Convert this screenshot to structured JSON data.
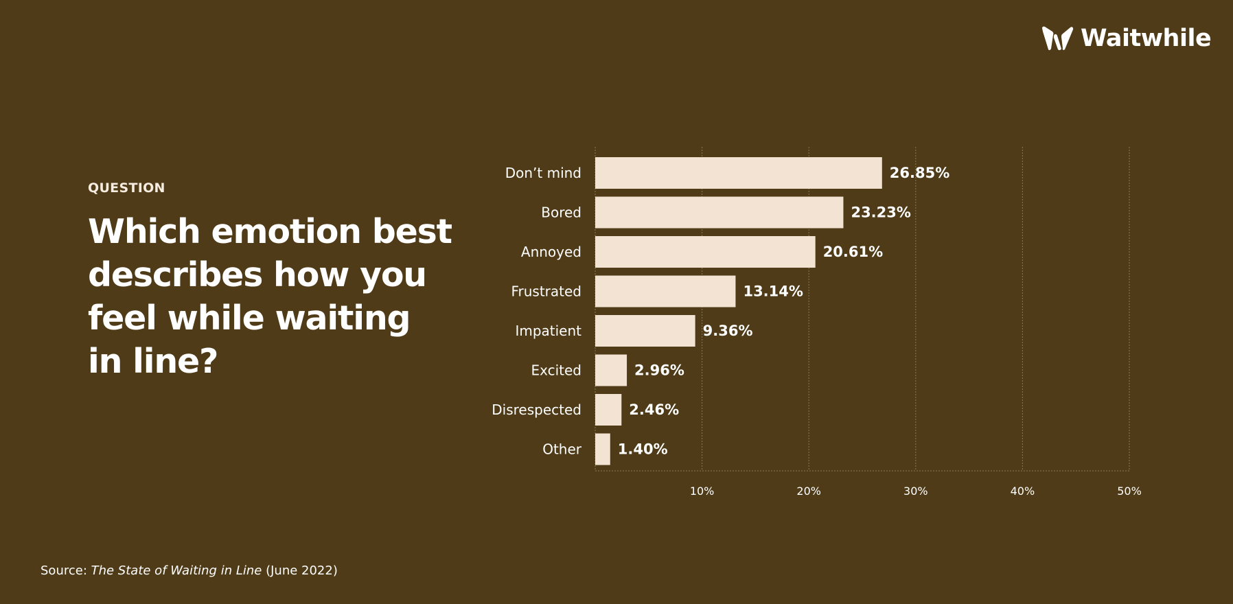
{
  "brand": {
    "name": "Waitwhile",
    "logo_icon": "waitwhile-w-icon"
  },
  "eyebrow": "QUESTION",
  "question_lines": [
    "Which emotion best",
    "describes how you",
    "feel while waiting",
    "in line?"
  ],
  "source": {
    "prefix": "Source: ",
    "title": "The State of Waiting in Line",
    "suffix": " (June 2022)"
  },
  "colors": {
    "background": "#4f3b17",
    "bar": "#f3e3d3",
    "text": "#ffffff",
    "grid": "#8a7858"
  },
  "chart_data": {
    "type": "bar",
    "orientation": "horizontal",
    "title": "",
    "xlabel": "",
    "ylabel": "",
    "categories": [
      "Don’t mind",
      "Bored",
      "Annoyed",
      "Frustrated",
      "Impatient",
      "Excited",
      "Disrespected",
      "Other"
    ],
    "values": [
      26.85,
      23.23,
      20.61,
      13.14,
      9.36,
      2.96,
      2.46,
      1.4
    ],
    "value_labels": [
      "26.85%",
      "23.23%",
      "20.61%",
      "13.14%",
      "9.36%",
      "2.96%",
      "2.46%",
      "1.40%"
    ],
    "xlim": [
      0,
      50
    ],
    "xticks": [
      10,
      20,
      30,
      40,
      50
    ],
    "xtick_labels": [
      "10%",
      "20%",
      "30%",
      "40%",
      "50%"
    ],
    "grid": true,
    "grid_style": "dotted vertical",
    "legend": "none"
  }
}
